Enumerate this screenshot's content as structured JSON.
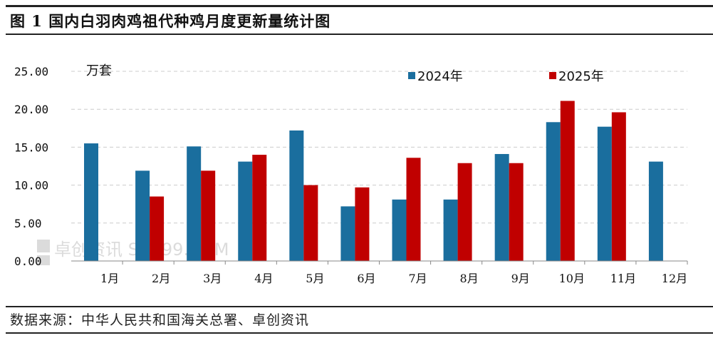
{
  "header": {
    "title": "图 1  国内白羽肉鸡祖代种鸡月度更新量统计图"
  },
  "footer": {
    "source": "数据来源：中华人民共和国海关总署、卓创资讯"
  },
  "watermark": {
    "text": "卓创资讯 SC199.COM"
  },
  "colors": {
    "s2024": "#1a6e9e",
    "s2025": "#c00000"
  },
  "chart_data": {
    "type": "bar",
    "title": "国内白羽肉鸡祖代种鸡月度更新量统计图",
    "ylabel": "万套",
    "ylim": [
      0,
      25
    ],
    "yticks": [
      "0.00",
      "5.00",
      "10.00",
      "15.00",
      "20.00",
      "25.00"
    ],
    "grid": true,
    "legend": "top-right",
    "categories": [
      "1月",
      "2月",
      "3月",
      "4月",
      "5月",
      "6月",
      "7月",
      "8月",
      "9月",
      "10月",
      "11月",
      "12月"
    ],
    "series": [
      {
        "name": "2024年",
        "values": [
          15.5,
          11.9,
          15.1,
          13.1,
          17.2,
          7.2,
          8.1,
          8.1,
          14.1,
          18.3,
          17.7,
          13.1
        ]
      },
      {
        "name": "2025年",
        "values": [
          null,
          8.5,
          11.9,
          14.0,
          10.0,
          9.7,
          13.6,
          12.9,
          12.9,
          21.1,
          19.6,
          null
        ]
      }
    ]
  }
}
